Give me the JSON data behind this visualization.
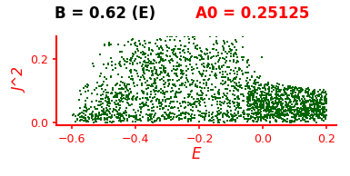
{
  "title_left": "B = 0.62 (E)",
  "title_right": "A0 = 0.25125",
  "xlabel": "E",
  "ylabel": "J^2",
  "xlim": [
    -0.65,
    0.23
  ],
  "ylim": [
    -0.008,
    0.27
  ],
  "xticks": [
    -0.6,
    -0.4,
    -0.2,
    0.0,
    0.2
  ],
  "yticks": [
    0,
    0.2
  ],
  "dot_color": "#006400",
  "axis_color": "red",
  "background_color": "white",
  "seed": 7
}
